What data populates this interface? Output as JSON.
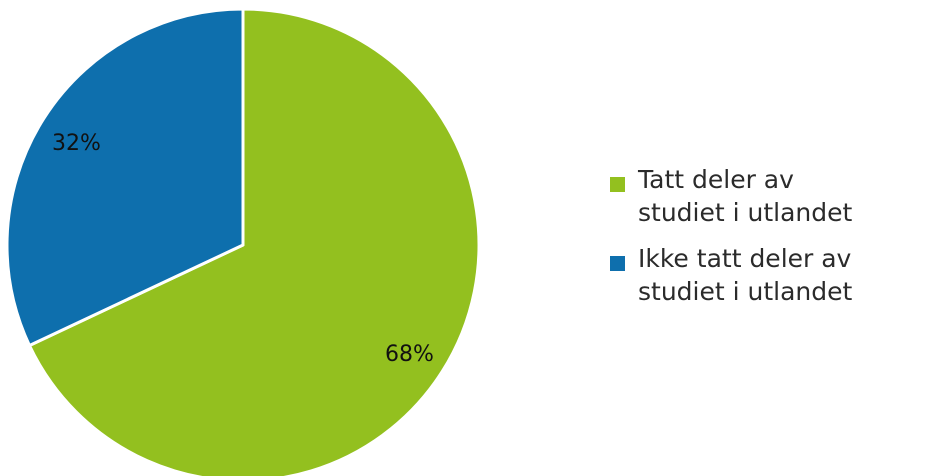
{
  "chart_data": {
    "type": "pie",
    "title": "",
    "slices": [
      {
        "name": "Tatt deler av studiet i utlandet",
        "value": 68,
        "label": "68%",
        "color": "#93c01f"
      },
      {
        "name": "Ikke tatt deler av studiet i utlandet",
        "value": 32,
        "label": "32%",
        "color": "#0e6fad"
      }
    ],
    "legend_position": "right"
  },
  "legend": {
    "items": [
      {
        "line1": "Tatt deler av",
        "line2": "studiet i utlandet",
        "color": "#93c01f"
      },
      {
        "line1": "Ikke tatt deler av",
        "line2": "studiet i utlandet",
        "color": "#0e6fad"
      }
    ]
  }
}
